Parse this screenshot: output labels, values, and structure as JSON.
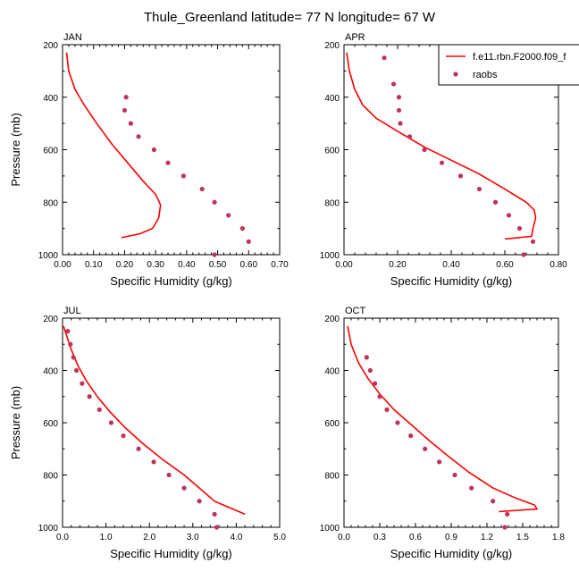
{
  "figure": {
    "title": "Thule_Greenland  latitude= 77 N longitude= 67 W"
  },
  "colors": {
    "model_line": "#ff0000",
    "obs_marker": "#c0325a",
    "axes": "#000000"
  },
  "legend": {
    "placement": "top-right of APR panel",
    "entries": [
      {
        "label": "f.e11.rbn.F2000.f09_f",
        "kind": "line"
      },
      {
        "label": "raobs",
        "kind": "marker"
      }
    ]
  },
  "chart_data": [
    {
      "type": "line",
      "panel": "JAN",
      "xlabel": "Specific Humidity (g/kg)",
      "ylabel": "Pressure (mb)",
      "xlim": [
        0,
        0.7
      ],
      "ylim": [
        1000,
        200
      ],
      "xticks": [
        "0.00",
        "0.10",
        "0.20",
        "0.30",
        "0.40",
        "0.50",
        "0.60",
        "0.70"
      ],
      "yticks": [
        "200",
        "400",
        "600",
        "800",
        "1000"
      ],
      "y_inverted": true,
      "series": [
        {
          "name": "f.e11.rbn.F2000.f09_f",
          "style": "line",
          "points": [
            [
              0.013,
              230
            ],
            [
              0.02,
              300
            ],
            [
              0.04,
              370
            ],
            [
              0.07,
              430
            ],
            [
              0.11,
              500
            ],
            [
              0.16,
              580
            ],
            [
              0.21,
              650
            ],
            [
              0.26,
              720
            ],
            [
              0.3,
              770
            ],
            [
              0.316,
              810
            ],
            [
              0.31,
              860
            ],
            [
              0.29,
              900
            ],
            [
              0.25,
              920
            ],
            [
              0.19,
              935
            ]
          ]
        },
        {
          "name": "raobs",
          "style": "marker",
          "points": [
            [
              0.205,
              400
            ],
            [
              0.2,
              450
            ],
            [
              0.22,
              500
            ],
            [
              0.245,
              550
            ],
            [
              0.295,
              600
            ],
            [
              0.34,
              650
            ],
            [
              0.39,
              700
            ],
            [
              0.45,
              750
            ],
            [
              0.49,
              800
            ],
            [
              0.535,
              850
            ],
            [
              0.58,
              900
            ],
            [
              0.6,
              950
            ],
            [
              0.49,
              1000
            ]
          ]
        }
      ]
    },
    {
      "type": "line",
      "panel": "APR",
      "xlabel": "Specific Humidity (g/kg)",
      "ylabel": "",
      "xlim": [
        0,
        0.8
      ],
      "ylim": [
        1000,
        200
      ],
      "xticks": [
        "0.00",
        "0.20",
        "0.40",
        "0.60",
        "0.80"
      ],
      "yticks": [
        "200",
        "400",
        "600",
        "800",
        "1000"
      ],
      "y_inverted": true,
      "series": [
        {
          "name": "f.e11.rbn.F2000.f09_f",
          "style": "line",
          "points": [
            [
              0.01,
              230
            ],
            [
              0.02,
              300
            ],
            [
              0.04,
              370
            ],
            [
              0.07,
              430
            ],
            [
              0.12,
              480
            ],
            [
              0.2,
              530
            ],
            [
              0.3,
              590
            ],
            [
              0.4,
              640
            ],
            [
              0.5,
              690
            ],
            [
              0.6,
              750
            ],
            [
              0.68,
              800
            ],
            [
              0.71,
              830
            ],
            [
              0.715,
              860
            ],
            [
              0.705,
              900
            ],
            [
              0.7,
              930
            ],
            [
              0.6,
              940
            ]
          ]
        },
        {
          "name": "raobs",
          "style": "marker",
          "points": [
            [
              0.15,
              250
            ],
            [
              0.185,
              350
            ],
            [
              0.205,
              400
            ],
            [
              0.205,
              450
            ],
            [
              0.21,
              500
            ],
            [
              0.245,
              550
            ],
            [
              0.3,
              600
            ],
            [
              0.365,
              650
            ],
            [
              0.435,
              700
            ],
            [
              0.505,
              750
            ],
            [
              0.565,
              800
            ],
            [
              0.615,
              850
            ],
            [
              0.655,
              900
            ],
            [
              0.705,
              950
            ],
            [
              0.67,
              1000
            ]
          ]
        }
      ]
    },
    {
      "type": "line",
      "panel": "JUL",
      "xlabel": "Specific Humidity (g/kg)",
      "ylabel": "Pressure (mb)",
      "xlim": [
        0,
        5.0
      ],
      "ylim": [
        1000,
        200
      ],
      "xticks": [
        "0.0",
        "1.0",
        "2.0",
        "3.0",
        "4.0",
        "5.0"
      ],
      "yticks": [
        "200",
        "400",
        "600",
        "800",
        "1000"
      ],
      "y_inverted": true,
      "series": [
        {
          "name": "f.e11.rbn.F2000.f09_f",
          "style": "line",
          "points": [
            [
              0.02,
              230
            ],
            [
              0.1,
              270
            ],
            [
              0.2,
              320
            ],
            [
              0.35,
              380
            ],
            [
              0.55,
              440
            ],
            [
              0.8,
              500
            ],
            [
              1.1,
              560
            ],
            [
              1.45,
              620
            ],
            [
              1.85,
              680
            ],
            [
              2.3,
              740
            ],
            [
              2.8,
              800
            ],
            [
              3.15,
              850
            ],
            [
              3.5,
              900
            ],
            [
              4.2,
              950
            ]
          ]
        },
        {
          "name": "raobs",
          "style": "marker",
          "points": [
            [
              0.12,
              250
            ],
            [
              0.18,
              300
            ],
            [
              0.25,
              350
            ],
            [
              0.32,
              400
            ],
            [
              0.45,
              450
            ],
            [
              0.62,
              500
            ],
            [
              0.85,
              550
            ],
            [
              1.12,
              600
            ],
            [
              1.4,
              650
            ],
            [
              1.75,
              700
            ],
            [
              2.1,
              750
            ],
            [
              2.45,
              800
            ],
            [
              2.8,
              850
            ],
            [
              3.15,
              900
            ],
            [
              3.5,
              950
            ],
            [
              3.55,
              1000
            ]
          ]
        }
      ]
    },
    {
      "type": "line",
      "panel": "OCT",
      "xlabel": "Specific Humidity (g/kg)",
      "ylabel": "",
      "xlim": [
        0,
        1.8
      ],
      "ylim": [
        1000,
        200
      ],
      "xticks": [
        "0.0",
        "0.3",
        "0.6",
        "0.9",
        "1.2",
        "1.5",
        "1.8"
      ],
      "yticks": [
        "200",
        "400",
        "600",
        "800",
        "1000"
      ],
      "y_inverted": true,
      "series": [
        {
          "name": "f.e11.rbn.F2000.f09_f",
          "style": "line",
          "points": [
            [
              0.03,
              230
            ],
            [
              0.06,
              300
            ],
            [
              0.12,
              370
            ],
            [
              0.2,
              430
            ],
            [
              0.3,
              490
            ],
            [
              0.42,
              550
            ],
            [
              0.57,
              610
            ],
            [
              0.72,
              670
            ],
            [
              0.88,
              730
            ],
            [
              1.05,
              790
            ],
            [
              1.25,
              850
            ],
            [
              1.45,
              890
            ],
            [
              1.6,
              915
            ],
            [
              1.62,
              930
            ],
            [
              1.3,
              940
            ]
          ]
        },
        {
          "name": "raobs",
          "style": "marker",
          "points": [
            [
              0.19,
              350
            ],
            [
              0.22,
              400
            ],
            [
              0.26,
              450
            ],
            [
              0.3,
              500
            ],
            [
              0.36,
              550
            ],
            [
              0.45,
              600
            ],
            [
              0.56,
              650
            ],
            [
              0.68,
              700
            ],
            [
              0.8,
              750
            ],
            [
              0.93,
              800
            ],
            [
              1.07,
              850
            ],
            [
              1.25,
              900
            ],
            [
              1.37,
              950
            ],
            [
              1.35,
              1000
            ]
          ]
        }
      ]
    }
  ]
}
